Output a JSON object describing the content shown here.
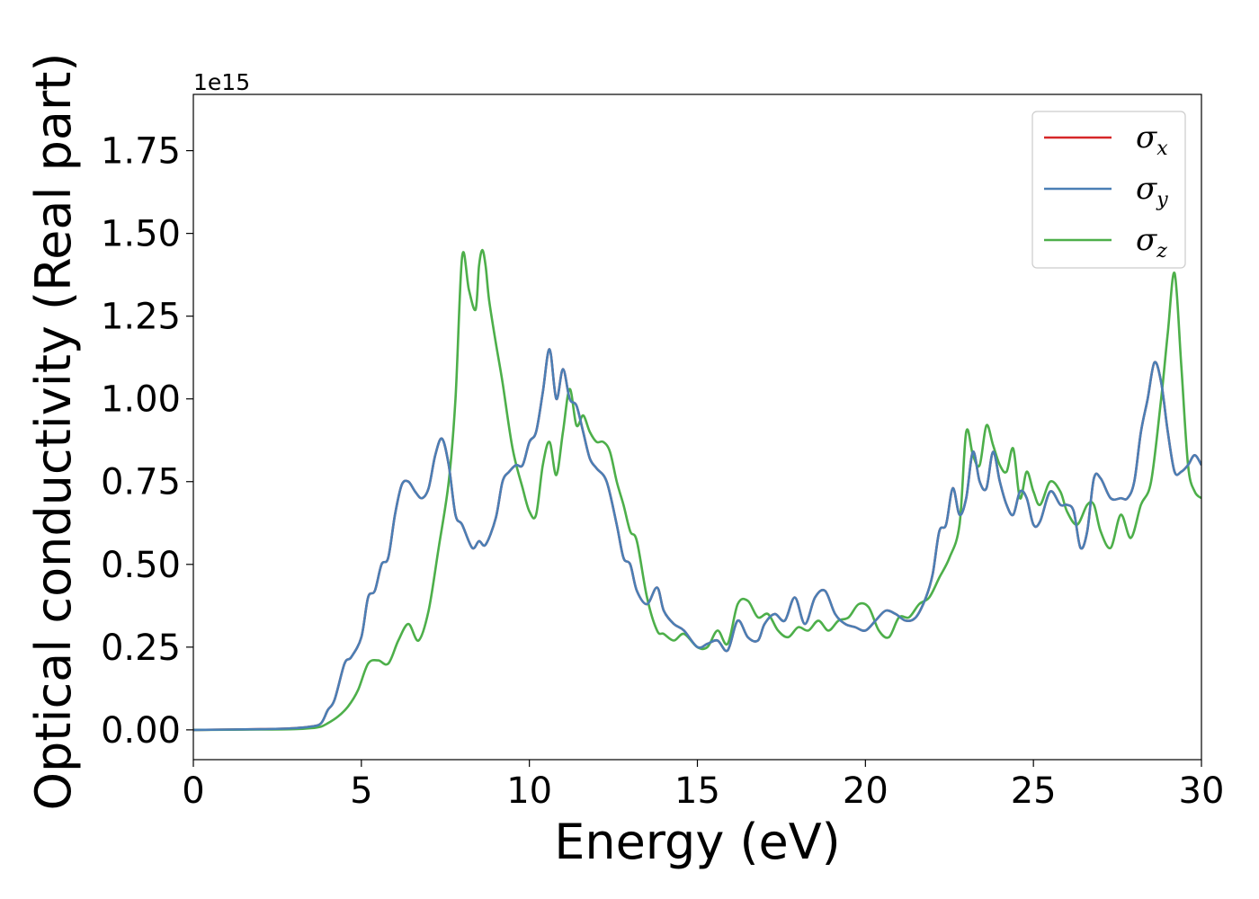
{
  "chart_data": {
    "type": "line",
    "xlabel": "Energy (eV)",
    "ylabel": "Optical conductivity (Real part)",
    "y_offset_label": "1e15",
    "xlim": [
      0,
      30
    ],
    "ylim": [
      -0.09,
      1.92
    ],
    "y_scale_factor": 1000000000000000.0,
    "grid": false,
    "legend_position": "top-right",
    "x_ticks": [
      0,
      5,
      10,
      15,
      20,
      25,
      30
    ],
    "x_tick_labels": [
      "0",
      "5",
      "10",
      "15",
      "20",
      "25",
      "30"
    ],
    "y_ticks": [
      0.0,
      0.25,
      0.5,
      0.75,
      1.0,
      1.25,
      1.5,
      1.75
    ],
    "y_tick_labels": [
      "0.00",
      "0.25",
      "0.50",
      "0.75",
      "1.00",
      "1.25",
      "1.50",
      "1.75"
    ],
    "series": [
      {
        "name": "σx",
        "symbol": "σ",
        "subscript": "x",
        "color": "#d62728",
        "x": [
          0,
          2,
          3,
          3.5,
          3.8,
          4.0,
          4.2,
          4.5,
          4.7,
          5.0,
          5.2,
          5.4,
          5.6,
          5.8,
          6.0,
          6.2,
          6.4,
          6.6,
          6.8,
          7.0,
          7.2,
          7.4,
          7.6,
          7.8,
          8.0,
          8.3,
          8.5,
          8.7,
          9.0,
          9.2,
          9.4,
          9.6,
          9.8,
          10.0,
          10.2,
          10.4,
          10.6,
          10.8,
          11.0,
          11.2,
          11.4,
          11.6,
          11.8,
          12.0,
          12.3,
          12.6,
          12.8,
          13.0,
          13.2,
          13.5,
          13.8,
          14.0,
          14.3,
          14.6,
          15.0,
          15.3,
          15.6,
          15.9,
          16.2,
          16.5,
          16.8,
          17.0,
          17.3,
          17.6,
          17.9,
          18.2,
          18.5,
          18.8,
          19.1,
          19.4,
          19.7,
          20.0,
          20.3,
          20.6,
          20.9,
          21.2,
          21.5,
          21.8,
          22.0,
          22.2,
          22.4,
          22.6,
          22.8,
          23.0,
          23.2,
          23.4,
          23.6,
          23.8,
          24.0,
          24.2,
          24.4,
          24.6,
          24.8,
          25.0,
          25.2,
          25.5,
          25.8,
          26.0,
          26.2,
          26.4,
          26.6,
          26.8,
          27.0,
          27.3,
          27.6,
          27.8,
          28.0,
          28.2,
          28.4,
          28.6,
          28.8,
          29.0,
          29.2,
          29.4,
          29.6,
          29.8,
          30.0
        ],
        "values": [
          0.0,
          0.002,
          0.005,
          0.01,
          0.02,
          0.06,
          0.09,
          0.2,
          0.22,
          0.28,
          0.4,
          0.42,
          0.5,
          0.52,
          0.65,
          0.74,
          0.75,
          0.72,
          0.7,
          0.73,
          0.83,
          0.88,
          0.8,
          0.65,
          0.62,
          0.55,
          0.57,
          0.56,
          0.64,
          0.75,
          0.78,
          0.8,
          0.8,
          0.87,
          0.9,
          1.02,
          1.15,
          1.0,
          1.09,
          1.0,
          0.98,
          0.9,
          0.82,
          0.79,
          0.75,
          0.62,
          0.52,
          0.5,
          0.42,
          0.38,
          0.43,
          0.36,
          0.32,
          0.3,
          0.25,
          0.26,
          0.27,
          0.24,
          0.33,
          0.28,
          0.27,
          0.32,
          0.35,
          0.33,
          0.4,
          0.32,
          0.4,
          0.42,
          0.35,
          0.32,
          0.31,
          0.3,
          0.33,
          0.36,
          0.35,
          0.33,
          0.34,
          0.4,
          0.47,
          0.6,
          0.62,
          0.73,
          0.65,
          0.7,
          0.84,
          0.75,
          0.73,
          0.84,
          0.75,
          0.68,
          0.65,
          0.72,
          0.7,
          0.62,
          0.63,
          0.72,
          0.68,
          0.68,
          0.66,
          0.55,
          0.6,
          0.76,
          0.76,
          0.7,
          0.7,
          0.7,
          0.75,
          0.9,
          1.0,
          1.11,
          1.05,
          0.9,
          0.78,
          0.78,
          0.8,
          0.83,
          0.8
        ]
      },
      {
        "name": "σy",
        "symbol": "σ",
        "subscript": "y",
        "color": "#4a7fb5",
        "x": [
          0,
          2,
          3,
          3.5,
          3.8,
          4.0,
          4.2,
          4.5,
          4.7,
          5.0,
          5.2,
          5.4,
          5.6,
          5.8,
          6.0,
          6.2,
          6.4,
          6.6,
          6.8,
          7.0,
          7.2,
          7.4,
          7.6,
          7.8,
          8.0,
          8.3,
          8.5,
          8.7,
          9.0,
          9.2,
          9.4,
          9.6,
          9.8,
          10.0,
          10.2,
          10.4,
          10.6,
          10.8,
          11.0,
          11.2,
          11.4,
          11.6,
          11.8,
          12.0,
          12.3,
          12.6,
          12.8,
          13.0,
          13.2,
          13.5,
          13.8,
          14.0,
          14.3,
          14.6,
          15.0,
          15.3,
          15.6,
          15.9,
          16.2,
          16.5,
          16.8,
          17.0,
          17.3,
          17.6,
          17.9,
          18.2,
          18.5,
          18.8,
          19.1,
          19.4,
          19.7,
          20.0,
          20.3,
          20.6,
          20.9,
          21.2,
          21.5,
          21.8,
          22.0,
          22.2,
          22.4,
          22.6,
          22.8,
          23.0,
          23.2,
          23.4,
          23.6,
          23.8,
          24.0,
          24.2,
          24.4,
          24.6,
          24.8,
          25.0,
          25.2,
          25.5,
          25.8,
          26.0,
          26.2,
          26.4,
          26.6,
          26.8,
          27.0,
          27.3,
          27.6,
          27.8,
          28.0,
          28.2,
          28.4,
          28.6,
          28.8,
          29.0,
          29.2,
          29.4,
          29.6,
          29.8,
          30.0
        ],
        "values": [
          0.0,
          0.002,
          0.005,
          0.01,
          0.02,
          0.06,
          0.09,
          0.2,
          0.22,
          0.28,
          0.4,
          0.42,
          0.5,
          0.52,
          0.65,
          0.74,
          0.75,
          0.72,
          0.7,
          0.73,
          0.83,
          0.88,
          0.8,
          0.65,
          0.62,
          0.55,
          0.57,
          0.56,
          0.64,
          0.75,
          0.78,
          0.8,
          0.8,
          0.87,
          0.9,
          1.02,
          1.15,
          1.0,
          1.09,
          1.0,
          0.98,
          0.9,
          0.82,
          0.79,
          0.75,
          0.62,
          0.52,
          0.5,
          0.42,
          0.38,
          0.43,
          0.36,
          0.32,
          0.3,
          0.25,
          0.26,
          0.27,
          0.24,
          0.33,
          0.28,
          0.27,
          0.32,
          0.35,
          0.33,
          0.4,
          0.32,
          0.4,
          0.42,
          0.35,
          0.32,
          0.31,
          0.3,
          0.33,
          0.36,
          0.35,
          0.33,
          0.34,
          0.4,
          0.47,
          0.6,
          0.62,
          0.73,
          0.65,
          0.7,
          0.84,
          0.75,
          0.73,
          0.84,
          0.75,
          0.68,
          0.65,
          0.72,
          0.7,
          0.62,
          0.63,
          0.72,
          0.68,
          0.68,
          0.66,
          0.55,
          0.6,
          0.76,
          0.76,
          0.7,
          0.7,
          0.7,
          0.75,
          0.9,
          1.0,
          1.11,
          1.05,
          0.9,
          0.78,
          0.78,
          0.8,
          0.83,
          0.8
        ]
      },
      {
        "name": "σz",
        "symbol": "σ",
        "subscript": "z",
        "color": "#4daf4a",
        "x": [
          0,
          2,
          3,
          3.5,
          3.8,
          4.0,
          4.3,
          4.6,
          4.9,
          5.2,
          5.5,
          5.8,
          6.1,
          6.4,
          6.7,
          7.0,
          7.3,
          7.6,
          7.8,
          8.0,
          8.2,
          8.4,
          8.5,
          8.6,
          8.7,
          8.8,
          9.0,
          9.2,
          9.5,
          9.8,
          10.0,
          10.2,
          10.4,
          10.6,
          10.8,
          11.0,
          11.2,
          11.4,
          11.6,
          11.8,
          12.0,
          12.2,
          12.4,
          12.6,
          12.8,
          13.0,
          13.2,
          13.5,
          13.8,
          14.0,
          14.3,
          14.6,
          15.0,
          15.3,
          15.6,
          15.9,
          16.2,
          16.5,
          16.8,
          17.1,
          17.4,
          17.7,
          18.0,
          18.3,
          18.6,
          18.9,
          19.2,
          19.5,
          19.8,
          20.1,
          20.4,
          20.7,
          21.0,
          21.3,
          21.6,
          21.9,
          22.2,
          22.5,
          22.8,
          23.0,
          23.2,
          23.4,
          23.6,
          23.8,
          24.0,
          24.2,
          24.4,
          24.6,
          24.8,
          25.0,
          25.2,
          25.5,
          25.8,
          26.0,
          26.3,
          26.6,
          26.8,
          27.0,
          27.3,
          27.6,
          27.9,
          28.2,
          28.5,
          28.8,
          29.0,
          29.2,
          29.4,
          29.6,
          29.8,
          30.0
        ],
        "values": [
          0.0,
          0.001,
          0.002,
          0.005,
          0.01,
          0.02,
          0.04,
          0.07,
          0.12,
          0.2,
          0.21,
          0.2,
          0.27,
          0.32,
          0.27,
          0.36,
          0.55,
          0.75,
          1.0,
          1.43,
          1.33,
          1.27,
          1.4,
          1.45,
          1.4,
          1.3,
          1.17,
          1.05,
          0.85,
          0.73,
          0.66,
          0.65,
          0.8,
          0.87,
          0.77,
          0.9,
          1.03,
          0.92,
          0.95,
          0.9,
          0.87,
          0.87,
          0.84,
          0.75,
          0.68,
          0.6,
          0.57,
          0.4,
          0.3,
          0.29,
          0.27,
          0.29,
          0.25,
          0.25,
          0.3,
          0.26,
          0.38,
          0.39,
          0.34,
          0.35,
          0.3,
          0.28,
          0.31,
          0.3,
          0.33,
          0.3,
          0.33,
          0.34,
          0.38,
          0.37,
          0.3,
          0.28,
          0.34,
          0.34,
          0.38,
          0.4,
          0.46,
          0.52,
          0.62,
          0.9,
          0.83,
          0.8,
          0.92,
          0.86,
          0.8,
          0.78,
          0.85,
          0.7,
          0.78,
          0.72,
          0.68,
          0.75,
          0.72,
          0.66,
          0.62,
          0.68,
          0.68,
          0.6,
          0.55,
          0.65,
          0.58,
          0.68,
          0.75,
          1.0,
          1.2,
          1.38,
          1.1,
          0.8,
          0.72,
          0.7
        ]
      }
    ]
  }
}
